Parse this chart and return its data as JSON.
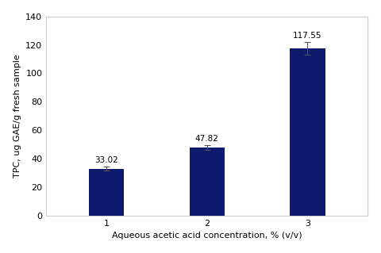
{
  "categories": [
    "1",
    "2",
    "3"
  ],
  "values": [
    33.02,
    47.82,
    117.55
  ],
  "errors": [
    1.5,
    1.8,
    4.5
  ],
  "bar_color": "#0d1a6e",
  "xlabel": "Aqueous acetic acid concentration, % (v/v)",
  "ylabel": "TPC, ug GAE/g fresh sample",
  "ylim": [
    0,
    140
  ],
  "yticks": [
    0,
    20,
    40,
    60,
    80,
    100,
    120,
    140
  ],
  "bar_width": 0.35,
  "value_labels": [
    "33.02",
    "47.82",
    "117.55"
  ],
  "label_fontsize": 7.5,
  "axis_fontsize": 8,
  "tick_fontsize": 8,
  "fig_background": "#ffffff",
  "plot_background": "#ffffff",
  "border_color": "#cccccc"
}
